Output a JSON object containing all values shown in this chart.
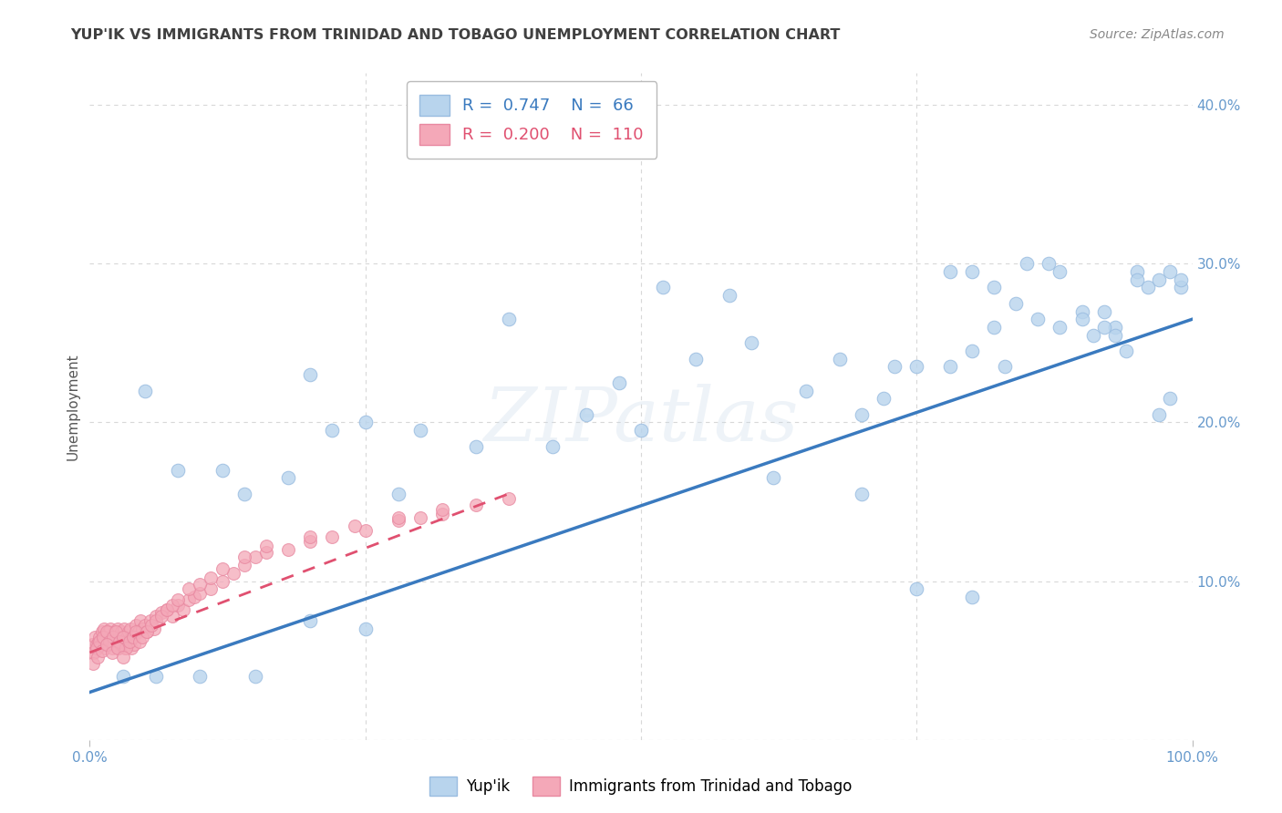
{
  "title": "YUP'IK VS IMMIGRANTS FROM TRINIDAD AND TOBAGO UNEMPLOYMENT CORRELATION CHART",
  "source": "Source: ZipAtlas.com",
  "ylabel": "Unemployment",
  "ytick_values": [
    0.0,
    0.1,
    0.2,
    0.3,
    0.4
  ],
  "xlim": [
    -0.02,
    1.05
  ],
  "ylim": [
    -0.02,
    0.44
  ],
  "plot_xlim": [
    0.0,
    1.0
  ],
  "plot_ylim": [
    0.0,
    0.42
  ],
  "legend_entries": [
    {
      "label": "Yup'ik",
      "R": "0.747",
      "N": "66",
      "color": "#b8d4ed"
    },
    {
      "label": "Immigrants from Trinidad and Tobago",
      "R": "0.200",
      "N": "110",
      "color": "#f4a8b8"
    }
  ],
  "background_color": "#ffffff",
  "grid_color": "#d8d8d8",
  "title_color": "#404040",
  "axis_label_color": "#6699cc",
  "watermark": "ZIPatlas",
  "blue_scatter_x": [
    0.05,
    0.08,
    0.12,
    0.14,
    0.18,
    0.2,
    0.22,
    0.25,
    0.28,
    0.3,
    0.35,
    0.38,
    0.42,
    0.45,
    0.48,
    0.5,
    0.52,
    0.55,
    0.58,
    0.6,
    0.62,
    0.65,
    0.68,
    0.7,
    0.72,
    0.73,
    0.75,
    0.78,
    0.8,
    0.82,
    0.83,
    0.85,
    0.87,
    0.88,
    0.9,
    0.92,
    0.93,
    0.95,
    0.96,
    0.97,
    0.98,
    0.99,
    0.99,
    0.78,
    0.8,
    0.82,
    0.84,
    0.86,
    0.88,
    0.9,
    0.91,
    0.92,
    0.93,
    0.94,
    0.95,
    0.97,
    0.98,
    0.7,
    0.75,
    0.8,
    0.03,
    0.06,
    0.1,
    0.15,
    0.2,
    0.25
  ],
  "blue_scatter_y": [
    0.22,
    0.17,
    0.17,
    0.155,
    0.165,
    0.23,
    0.195,
    0.2,
    0.155,
    0.195,
    0.185,
    0.265,
    0.185,
    0.205,
    0.225,
    0.195,
    0.285,
    0.24,
    0.28,
    0.25,
    0.165,
    0.22,
    0.24,
    0.205,
    0.215,
    0.235,
    0.235,
    0.235,
    0.245,
    0.26,
    0.235,
    0.3,
    0.3,
    0.295,
    0.27,
    0.27,
    0.26,
    0.295,
    0.285,
    0.205,
    0.215,
    0.285,
    0.29,
    0.295,
    0.295,
    0.285,
    0.275,
    0.265,
    0.26,
    0.265,
    0.255,
    0.26,
    0.255,
    0.245,
    0.29,
    0.29,
    0.295,
    0.155,
    0.095,
    0.09,
    0.04,
    0.04,
    0.04,
    0.04,
    0.075,
    0.07
  ],
  "pink_scatter_x": [
    0.002,
    0.004,
    0.005,
    0.006,
    0.007,
    0.008,
    0.009,
    0.01,
    0.011,
    0.012,
    0.013,
    0.014,
    0.015,
    0.016,
    0.017,
    0.018,
    0.019,
    0.02,
    0.021,
    0.022,
    0.023,
    0.024,
    0.025,
    0.026,
    0.027,
    0.028,
    0.029,
    0.03,
    0.031,
    0.032,
    0.033,
    0.034,
    0.035,
    0.036,
    0.037,
    0.038,
    0.039,
    0.04,
    0.042,
    0.044,
    0.046,
    0.048,
    0.05,
    0.052,
    0.055,
    0.058,
    0.06,
    0.065,
    0.07,
    0.075,
    0.08,
    0.085,
    0.09,
    0.095,
    0.1,
    0.11,
    0.12,
    0.13,
    0.14,
    0.15,
    0.16,
    0.18,
    0.2,
    0.22,
    0.25,
    0.28,
    0.3,
    0.32,
    0.35,
    0.38,
    0.003,
    0.006,
    0.009,
    0.012,
    0.015,
    0.018,
    0.021,
    0.024,
    0.027,
    0.03,
    0.033,
    0.036,
    0.039,
    0.042,
    0.045,
    0.048,
    0.052,
    0.056,
    0.06,
    0.065,
    0.07,
    0.075,
    0.08,
    0.09,
    0.1,
    0.11,
    0.12,
    0.14,
    0.16,
    0.2,
    0.24,
    0.28,
    0.32,
    0.003,
    0.007,
    0.011,
    0.015,
    0.02,
    0.025,
    0.03
  ],
  "pink_scatter_y": [
    0.06,
    0.055,
    0.065,
    0.06,
    0.058,
    0.062,
    0.065,
    0.06,
    0.068,
    0.063,
    0.07,
    0.058,
    0.065,
    0.06,
    0.068,
    0.063,
    0.07,
    0.058,
    0.065,
    0.06,
    0.068,
    0.063,
    0.07,
    0.058,
    0.065,
    0.06,
    0.068,
    0.063,
    0.07,
    0.058,
    0.065,
    0.06,
    0.068,
    0.063,
    0.07,
    0.058,
    0.065,
    0.06,
    0.072,
    0.068,
    0.075,
    0.07,
    0.072,
    0.068,
    0.075,
    0.07,
    0.078,
    0.08,
    0.082,
    0.078,
    0.085,
    0.082,
    0.088,
    0.09,
    0.092,
    0.095,
    0.1,
    0.105,
    0.11,
    0.115,
    0.118,
    0.12,
    0.125,
    0.128,
    0.132,
    0.138,
    0.14,
    0.142,
    0.148,
    0.152,
    0.055,
    0.058,
    0.062,
    0.065,
    0.068,
    0.062,
    0.065,
    0.068,
    0.062,
    0.065,
    0.058,
    0.062,
    0.065,
    0.068,
    0.062,
    0.065,
    0.068,
    0.072,
    0.075,
    0.078,
    0.082,
    0.085,
    0.088,
    0.095,
    0.098,
    0.102,
    0.108,
    0.115,
    0.122,
    0.128,
    0.135,
    0.14,
    0.145,
    0.048,
    0.052,
    0.056,
    0.06,
    0.055,
    0.058,
    0.052
  ],
  "blue_line_x": [
    0.0,
    1.0
  ],
  "blue_line_y": [
    0.03,
    0.265
  ],
  "pink_line_x": [
    0.0,
    0.38
  ],
  "pink_line_y": [
    0.055,
    0.155
  ],
  "blue_line_color": "#3a7abf",
  "pink_line_color": "#e05070",
  "blue_dot_color": "#b8d4ed",
  "pink_dot_color": "#f4a8b8",
  "dot_edge_color_blue": "#99bce0",
  "dot_edge_color_pink": "#e888a0"
}
